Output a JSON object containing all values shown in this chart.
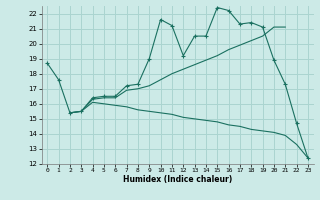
{
  "xlabel": "Humidex (Indice chaleur)",
  "background_color": "#cceae7",
  "grid_color": "#aad4d0",
  "line_color": "#1a7060",
  "xlim": [
    -0.5,
    23.5
  ],
  "ylim": [
    12,
    22.5
  ],
  "yticks": [
    12,
    13,
    14,
    15,
    16,
    17,
    18,
    19,
    20,
    21,
    22
  ],
  "xticks": [
    0,
    1,
    2,
    3,
    4,
    5,
    6,
    7,
    8,
    9,
    10,
    11,
    12,
    13,
    14,
    15,
    16,
    17,
    18,
    19,
    20,
    21,
    22,
    23
  ],
  "line1_x": [
    0,
    1,
    2,
    3,
    4,
    5,
    6,
    7,
    8,
    9,
    10,
    11,
    12,
    13,
    14,
    15,
    16,
    17,
    18,
    19,
    20,
    21,
    22,
    23
  ],
  "line1_y": [
    18.7,
    17.6,
    15.4,
    15.5,
    16.4,
    16.5,
    16.5,
    17.2,
    17.3,
    19.0,
    21.6,
    21.2,
    19.2,
    20.5,
    20.5,
    22.4,
    22.2,
    21.3,
    21.4,
    21.1,
    18.9,
    17.3,
    14.7,
    12.4
  ],
  "line2_x": [
    2,
    3,
    4,
    5,
    6,
    7,
    8,
    9,
    10,
    11,
    12,
    13,
    14,
    15,
    16,
    17,
    18,
    19,
    20,
    21
  ],
  "line2_y": [
    15.4,
    15.5,
    16.3,
    16.4,
    16.4,
    16.9,
    17.0,
    17.2,
    17.6,
    18.0,
    18.3,
    18.6,
    18.9,
    19.2,
    19.6,
    19.9,
    20.2,
    20.5,
    21.1,
    21.1
  ],
  "line3_x": [
    2,
    3,
    4,
    5,
    6,
    7,
    8,
    9,
    10,
    11,
    12,
    13,
    14,
    15,
    16,
    17,
    18,
    19,
    20,
    21,
    22,
    23
  ],
  "line3_y": [
    15.4,
    15.5,
    16.1,
    16.0,
    15.9,
    15.8,
    15.6,
    15.5,
    15.4,
    15.3,
    15.1,
    15.0,
    14.9,
    14.8,
    14.6,
    14.5,
    14.3,
    14.2,
    14.1,
    13.9,
    13.3,
    12.4
  ]
}
